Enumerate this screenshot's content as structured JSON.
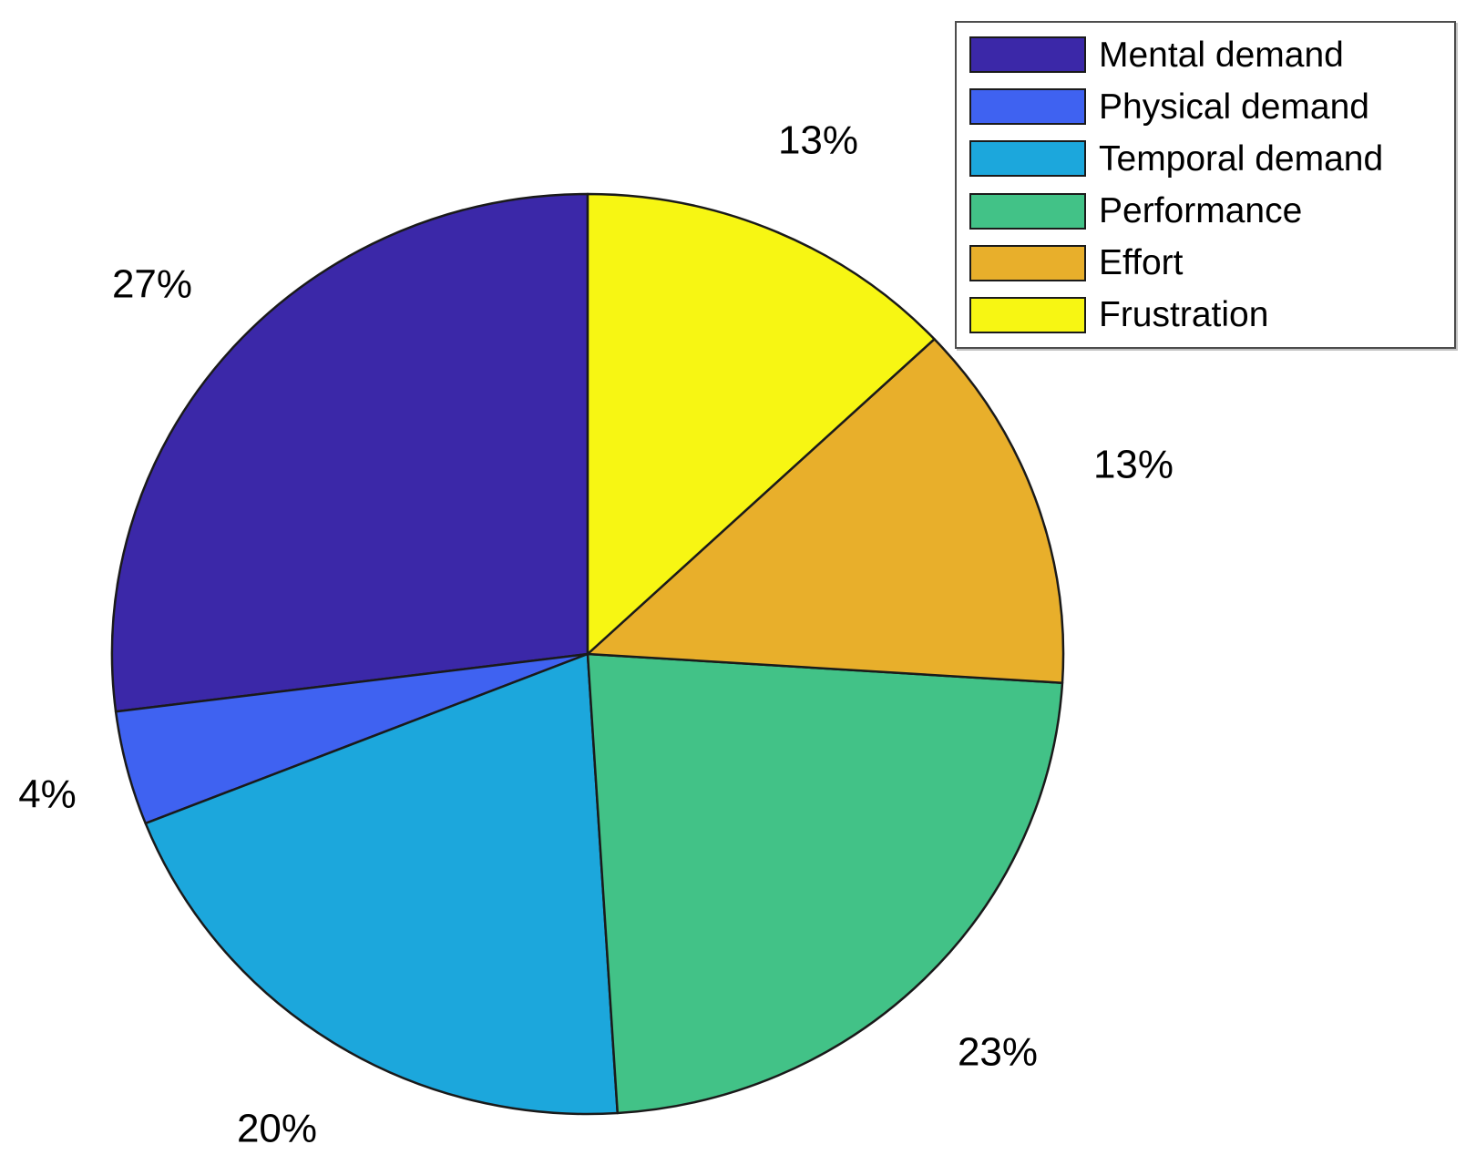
{
  "chart_data": {
    "type": "pie",
    "title": "",
    "legend_position": "top-right",
    "start_angle_deg": 90,
    "direction": "counterclockwise",
    "label_radius_factor": 1.22,
    "edge_color": "#1a1a1a",
    "background_color": "#ffffff",
    "series": [
      {
        "name": "Mental demand",
        "value": 27,
        "label": "27%",
        "color": "#3B28A8"
      },
      {
        "name": "Physical demand",
        "value": 4,
        "label": "4%",
        "color": "#3F62F1"
      },
      {
        "name": "Temporal demand",
        "value": 20,
        "label": "20%",
        "color": "#1CA7DC"
      },
      {
        "name": "Performance",
        "value": 23,
        "label": "23%",
        "color": "#42C287"
      },
      {
        "name": "Effort",
        "value": 13,
        "label": "13%",
        "color": "#E8AF2B"
      },
      {
        "name": "Frustration",
        "value": 13,
        "label": "13%",
        "color": "#F7F613"
      }
    ]
  }
}
